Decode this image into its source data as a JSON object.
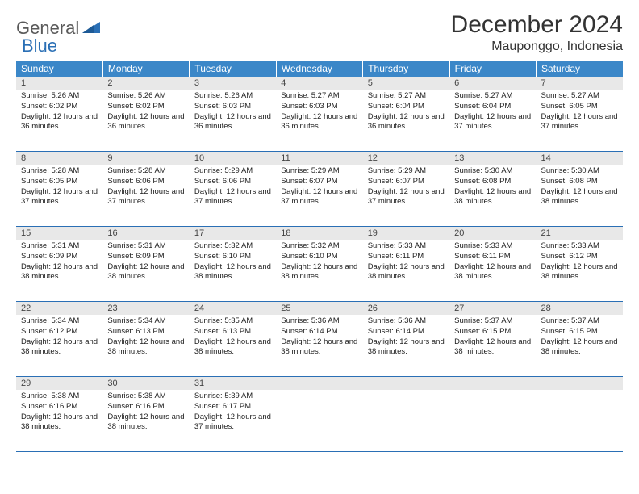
{
  "brand": {
    "part1": "General",
    "part2": "Blue"
  },
  "title": "December 2024",
  "location": "Mauponggo, Indonesia",
  "colors": {
    "header_bg": "#3b87c8",
    "header_text": "#ffffff",
    "daynum_bg": "#e8e8e8",
    "row_border": "#2a6fb5",
    "brand_gray": "#5a5a5a",
    "brand_blue": "#2a6fb5",
    "body_text": "#222222",
    "page_bg": "#ffffff"
  },
  "fonts": {
    "title_size": 30,
    "location_size": 16,
    "weekday_size": 12,
    "daynum_size": 11,
    "cell_size": 9.5,
    "family": "Arial"
  },
  "weekdays": [
    "Sunday",
    "Monday",
    "Tuesday",
    "Wednesday",
    "Thursday",
    "Friday",
    "Saturday"
  ],
  "weeks": [
    [
      {
        "day": "1",
        "sunrise": "Sunrise: 5:26 AM",
        "sunset": "Sunset: 6:02 PM",
        "daylight": "Daylight: 12 hours and 36 minutes."
      },
      {
        "day": "2",
        "sunrise": "Sunrise: 5:26 AM",
        "sunset": "Sunset: 6:02 PM",
        "daylight": "Daylight: 12 hours and 36 minutes."
      },
      {
        "day": "3",
        "sunrise": "Sunrise: 5:26 AM",
        "sunset": "Sunset: 6:03 PM",
        "daylight": "Daylight: 12 hours and 36 minutes."
      },
      {
        "day": "4",
        "sunrise": "Sunrise: 5:27 AM",
        "sunset": "Sunset: 6:03 PM",
        "daylight": "Daylight: 12 hours and 36 minutes."
      },
      {
        "day": "5",
        "sunrise": "Sunrise: 5:27 AM",
        "sunset": "Sunset: 6:04 PM",
        "daylight": "Daylight: 12 hours and 36 minutes."
      },
      {
        "day": "6",
        "sunrise": "Sunrise: 5:27 AM",
        "sunset": "Sunset: 6:04 PM",
        "daylight": "Daylight: 12 hours and 37 minutes."
      },
      {
        "day": "7",
        "sunrise": "Sunrise: 5:27 AM",
        "sunset": "Sunset: 6:05 PM",
        "daylight": "Daylight: 12 hours and 37 minutes."
      }
    ],
    [
      {
        "day": "8",
        "sunrise": "Sunrise: 5:28 AM",
        "sunset": "Sunset: 6:05 PM",
        "daylight": "Daylight: 12 hours and 37 minutes."
      },
      {
        "day": "9",
        "sunrise": "Sunrise: 5:28 AM",
        "sunset": "Sunset: 6:06 PM",
        "daylight": "Daylight: 12 hours and 37 minutes."
      },
      {
        "day": "10",
        "sunrise": "Sunrise: 5:29 AM",
        "sunset": "Sunset: 6:06 PM",
        "daylight": "Daylight: 12 hours and 37 minutes."
      },
      {
        "day": "11",
        "sunrise": "Sunrise: 5:29 AM",
        "sunset": "Sunset: 6:07 PM",
        "daylight": "Daylight: 12 hours and 37 minutes."
      },
      {
        "day": "12",
        "sunrise": "Sunrise: 5:29 AM",
        "sunset": "Sunset: 6:07 PM",
        "daylight": "Daylight: 12 hours and 37 minutes."
      },
      {
        "day": "13",
        "sunrise": "Sunrise: 5:30 AM",
        "sunset": "Sunset: 6:08 PM",
        "daylight": "Daylight: 12 hours and 38 minutes."
      },
      {
        "day": "14",
        "sunrise": "Sunrise: 5:30 AM",
        "sunset": "Sunset: 6:08 PM",
        "daylight": "Daylight: 12 hours and 38 minutes."
      }
    ],
    [
      {
        "day": "15",
        "sunrise": "Sunrise: 5:31 AM",
        "sunset": "Sunset: 6:09 PM",
        "daylight": "Daylight: 12 hours and 38 minutes."
      },
      {
        "day": "16",
        "sunrise": "Sunrise: 5:31 AM",
        "sunset": "Sunset: 6:09 PM",
        "daylight": "Daylight: 12 hours and 38 minutes."
      },
      {
        "day": "17",
        "sunrise": "Sunrise: 5:32 AM",
        "sunset": "Sunset: 6:10 PM",
        "daylight": "Daylight: 12 hours and 38 minutes."
      },
      {
        "day": "18",
        "sunrise": "Sunrise: 5:32 AM",
        "sunset": "Sunset: 6:10 PM",
        "daylight": "Daylight: 12 hours and 38 minutes."
      },
      {
        "day": "19",
        "sunrise": "Sunrise: 5:33 AM",
        "sunset": "Sunset: 6:11 PM",
        "daylight": "Daylight: 12 hours and 38 minutes."
      },
      {
        "day": "20",
        "sunrise": "Sunrise: 5:33 AM",
        "sunset": "Sunset: 6:11 PM",
        "daylight": "Daylight: 12 hours and 38 minutes."
      },
      {
        "day": "21",
        "sunrise": "Sunrise: 5:33 AM",
        "sunset": "Sunset: 6:12 PM",
        "daylight": "Daylight: 12 hours and 38 minutes."
      }
    ],
    [
      {
        "day": "22",
        "sunrise": "Sunrise: 5:34 AM",
        "sunset": "Sunset: 6:12 PM",
        "daylight": "Daylight: 12 hours and 38 minutes."
      },
      {
        "day": "23",
        "sunrise": "Sunrise: 5:34 AM",
        "sunset": "Sunset: 6:13 PM",
        "daylight": "Daylight: 12 hours and 38 minutes."
      },
      {
        "day": "24",
        "sunrise": "Sunrise: 5:35 AM",
        "sunset": "Sunset: 6:13 PM",
        "daylight": "Daylight: 12 hours and 38 minutes."
      },
      {
        "day": "25",
        "sunrise": "Sunrise: 5:36 AM",
        "sunset": "Sunset: 6:14 PM",
        "daylight": "Daylight: 12 hours and 38 minutes."
      },
      {
        "day": "26",
        "sunrise": "Sunrise: 5:36 AM",
        "sunset": "Sunset: 6:14 PM",
        "daylight": "Daylight: 12 hours and 38 minutes."
      },
      {
        "day": "27",
        "sunrise": "Sunrise: 5:37 AM",
        "sunset": "Sunset: 6:15 PM",
        "daylight": "Daylight: 12 hours and 38 minutes."
      },
      {
        "day": "28",
        "sunrise": "Sunrise: 5:37 AM",
        "sunset": "Sunset: 6:15 PM",
        "daylight": "Daylight: 12 hours and 38 minutes."
      }
    ],
    [
      {
        "day": "29",
        "sunrise": "Sunrise: 5:38 AM",
        "sunset": "Sunset: 6:16 PM",
        "daylight": "Daylight: 12 hours and 38 minutes."
      },
      {
        "day": "30",
        "sunrise": "Sunrise: 5:38 AM",
        "sunset": "Sunset: 6:16 PM",
        "daylight": "Daylight: 12 hours and 38 minutes."
      },
      {
        "day": "31",
        "sunrise": "Sunrise: 5:39 AM",
        "sunset": "Sunset: 6:17 PM",
        "daylight": "Daylight: 12 hours and 37 minutes."
      },
      {
        "day": "",
        "sunrise": "",
        "sunset": "",
        "daylight": ""
      },
      {
        "day": "",
        "sunrise": "",
        "sunset": "",
        "daylight": ""
      },
      {
        "day": "",
        "sunrise": "",
        "sunset": "",
        "daylight": ""
      },
      {
        "day": "",
        "sunrise": "",
        "sunset": "",
        "daylight": ""
      }
    ]
  ]
}
